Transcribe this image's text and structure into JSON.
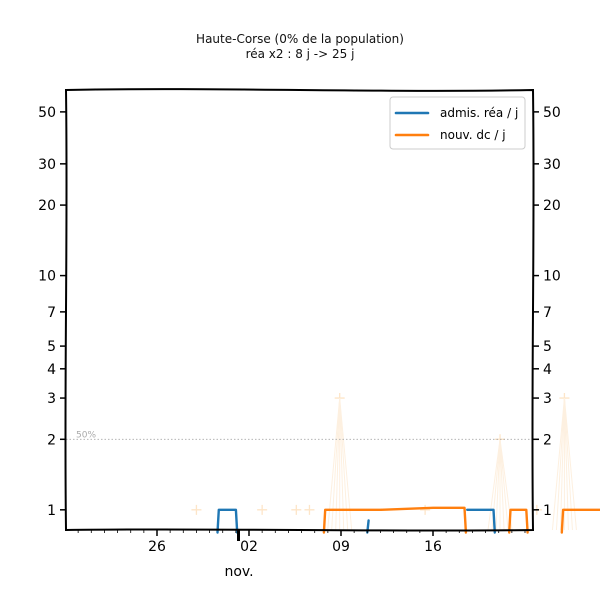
{
  "chart_data": {
    "type": "line",
    "title": "Haute-Corse (0% de la population)",
    "subtitle": "réa x2 : 8 j -> 25 j",
    "x_axis": {
      "ticks": [
        "26",
        "02",
        "09",
        "16"
      ],
      "month_label": "nov."
    },
    "y_axis": {
      "scale": "log",
      "range": [
        0.82,
        62
      ],
      "ticks": [
        1,
        2,
        3,
        4,
        5,
        7,
        10,
        20,
        30,
        50
      ],
      "mirrored_right": true
    },
    "reference_line": {
      "value": 2,
      "label": "50%"
    },
    "legend": {
      "position": "top-right",
      "entries": [
        {
          "label": "admis. réa / j",
          "color": "#1f77b4"
        },
        {
          "label": "nouv. dc / j",
          "color": "#ff7f0e"
        }
      ]
    },
    "series": [
      {
        "name": "admis. réa / j",
        "color": "#1f77b4",
        "segments": [
          [
            [
              -2.4,
              0.8
            ],
            [
              -2.3,
              1.0
            ],
            [
              -1.0,
              1.0
            ],
            [
              -0.9,
              0.8
            ]
          ],
          [
            [
              9.0,
              0.8
            ],
            [
              9.1,
              0.9
            ]
          ],
          [
            [
              16.6,
              1.0
            ],
            [
              18.6,
              1.0
            ],
            [
              18.7,
              0.8
            ]
          ]
        ]
      },
      {
        "name": "nouv. dc / j",
        "color": "#ff7f0e",
        "segments": [
          [
            [
              5.7,
              0.8
            ],
            [
              5.8,
              1.0
            ],
            [
              10,
              1.0
            ],
            [
              14,
              1.02
            ],
            [
              16.4,
              1.02
            ],
            [
              16.5,
              0.8
            ]
          ],
          [
            [
              19.8,
              0.8
            ],
            [
              19.9,
              1.0
            ],
            [
              21.1,
              1.0
            ],
            [
              21.2,
              0.8
            ]
          ],
          [
            [
              23.8,
              0.8
            ],
            [
              23.9,
              1.0
            ],
            [
              28,
              1.0
            ],
            [
              32,
              1.02
            ]
          ]
        ]
      }
    ],
    "faint_markers": [
      [
        -4.0,
        1.0
      ],
      [
        1.0,
        1.0
      ],
      [
        3.6,
        1.0
      ],
      [
        4.6,
        1.0
      ],
      [
        6.9,
        3.0
      ],
      [
        21.9,
        1.0
      ],
      [
        13.4,
        1.0
      ],
      [
        19.1,
        2.0
      ],
      [
        24.0,
        3.0
      ]
    ]
  }
}
